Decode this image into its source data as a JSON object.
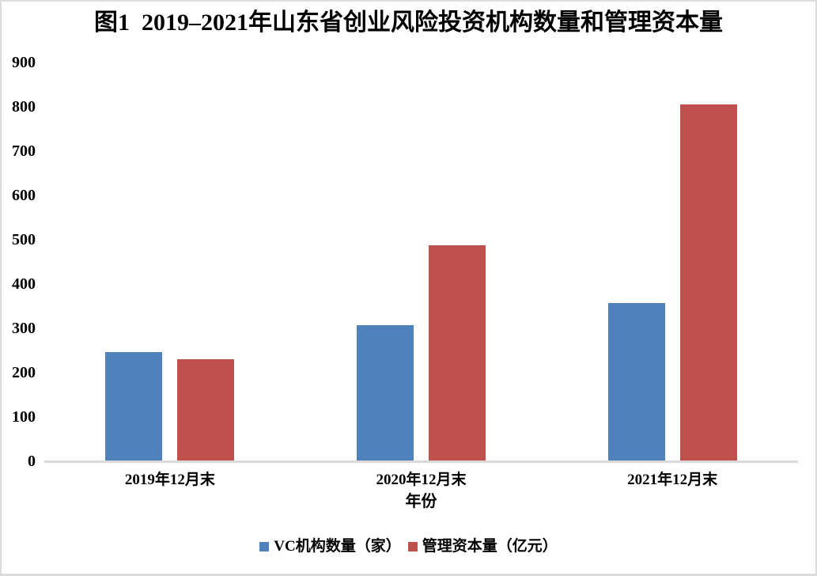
{
  "chart_data": {
    "type": "bar",
    "title": "图1  2019–2021年山东省创业风险投资机构数量和管理资本量",
    "categories": [
      "2019年12月末",
      "2020年12月末",
      "2021年12月末"
    ],
    "series": [
      {
        "name": "VC机构数量（家）",
        "color": "#4F81BD",
        "values": [
          246,
          308,
          358
        ]
      },
      {
        "name": "管理资本量（亿元）",
        "color": "#C0504D",
        "values": [
          230,
          487,
          806
        ]
      }
    ],
    "xlabel": "年份",
    "ylabel": "",
    "ylim": [
      0,
      900
    ],
    "y_ticks": [
      0,
      100,
      200,
      300,
      400,
      500,
      600,
      700,
      800,
      900
    ],
    "grid": false,
    "legend_position": "bottom",
    "axis_line_color": "#D9D9D9",
    "text_color": "#000000",
    "background": "#FFFFFF"
  }
}
